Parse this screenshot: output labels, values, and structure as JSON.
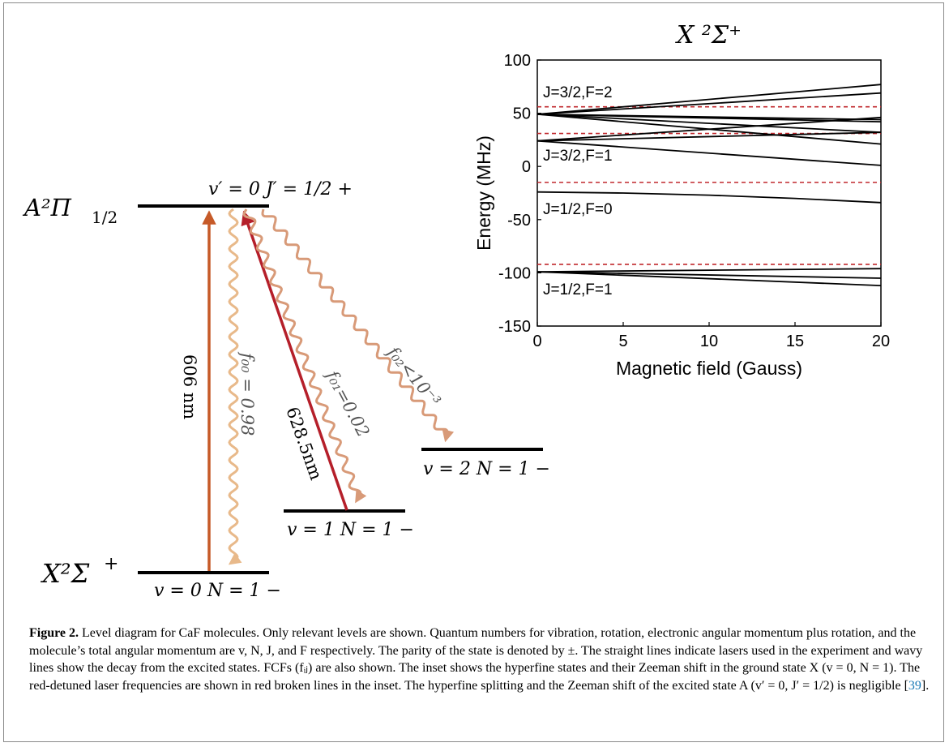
{
  "level_diagram": {
    "excited_state_label": "A²Π",
    "excited_state_subscript": "1/2",
    "excited_level_label": "v′ = 0  J′ = 1/2  +",
    "ground_state_label": "X²Σ",
    "ground_state_superscript": "+",
    "levels": [
      {
        "label": "v = 0  N = 1 −"
      },
      {
        "label": "v = 1  N = 1 −"
      },
      {
        "label": "v = 2  N = 1 −"
      }
    ],
    "lasers": [
      {
        "label": "606 nm",
        "color": "#c65a28"
      },
      {
        "label": "628.5nm",
        "color": "#b51f2a"
      }
    ],
    "decays": [
      {
        "label": "f₀₀ = 0.98",
        "color": "#e8b98a"
      },
      {
        "label": "f₀₁=0.02",
        "color": "#d89a78"
      },
      {
        "label": "f₀₂<10⁻³",
        "color": "#d89a78"
      }
    ]
  },
  "chart_data": {
    "type": "line",
    "title": "X ²Σ⁺",
    "xlabel": "Magnetic field (Gauss)",
    "ylabel": "Energy (MHz)",
    "xlim": [
      0,
      20
    ],
    "ylim": [
      -150,
      100
    ],
    "xticks": [
      "0",
      "5",
      "10",
      "15",
      "20"
    ],
    "yticks": [
      "100",
      "50",
      "0",
      "-50",
      "-100",
      "-150"
    ],
    "grid": false,
    "annotations": [
      "J=3/2,F=2",
      "J=3/2,F=1",
      "J=1/2,F=0",
      "J=1/2,F=1"
    ],
    "series_color": "#000000",
    "laser_line_color": "#c0282d",
    "series": [
      {
        "x": [
          0,
          20
        ],
        "y": [
          49,
          77
        ]
      },
      {
        "x": [
          0,
          20
        ],
        "y": [
          49,
          69
        ]
      },
      {
        "x": [
          0,
          20
        ],
        "y": [
          49,
          42
        ]
      },
      {
        "x": [
          0,
          20
        ],
        "y": [
          49,
          32
        ]
      },
      {
        "x": [
          0,
          20
        ],
        "y": [
          49,
          44
        ]
      },
      {
        "x": [
          0,
          20
        ],
        "y": [
          49,
          21
        ]
      },
      {
        "x": [
          0,
          20
        ],
        "y": [
          24,
          46
        ]
      },
      {
        "x": [
          0,
          20
        ],
        "y": [
          24,
          32
        ]
      },
      {
        "x": [
          0,
          20
        ],
        "y": [
          24,
          1
        ]
      },
      {
        "x": [
          0,
          5,
          10,
          15,
          20
        ],
        "y": [
          -24,
          -25,
          -27,
          -30,
          -34
        ]
      },
      {
        "x": [
          0,
          20
        ],
        "y": [
          -99,
          -96
        ]
      },
      {
        "x": [
          0,
          20
        ],
        "y": [
          -99,
          -105
        ]
      },
      {
        "x": [
          0,
          20
        ],
        "y": [
          -99,
          -112
        ]
      }
    ],
    "laser_lines_y": [
      56,
      31,
      -15,
      -92
    ]
  },
  "caption": {
    "label": "Figure 2.",
    "text": " Level diagram for CaF molecules. Only relevant levels are shown. Quantum numbers for vibration, rotation, electronic angular momentum plus rotation, and the molecule’s total angular momentum are v, N, J, and F respectively. The parity of the state is denoted by ±. The straight lines indicate lasers used in the experiment and wavy lines show the decay from the excited states. FCFs (fᵢⱼ) are also shown. The inset shows the hyperfine states and their Zeeman shift in the ground state X (v = 0, N = 1). The red-detuned laser frequencies are shown in red broken lines in the inset. The hyperfine splitting and the Zeeman shift of the excited state A (v′ = 0, J′ = 1/2) is negligible [",
    "ref": "39",
    "text_end": "]."
  }
}
